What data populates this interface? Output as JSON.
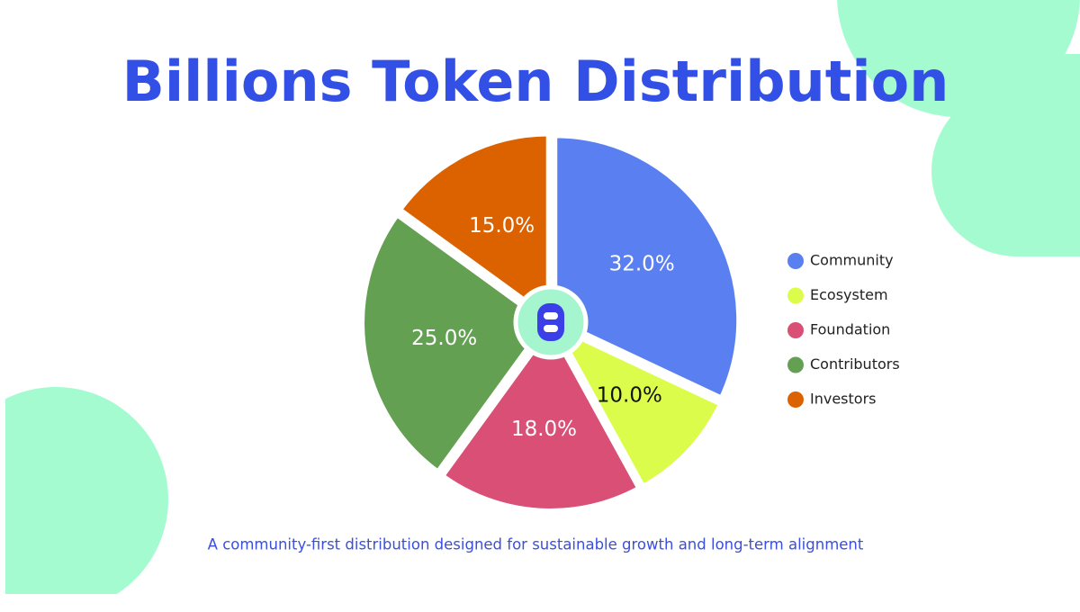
{
  "chart_data": {
    "type": "pie",
    "title": "Billions Token Distribution",
    "subtitle": "A community-first distribution designed for sustainable growth and long-term alignment",
    "categories": [
      "Community",
      "Ecosystem",
      "Foundation",
      "Contributors",
      "Investors"
    ],
    "values": [
      32,
      10,
      18,
      25,
      15
    ],
    "value_labels": [
      "32.0%",
      "10.0%",
      "18.0%",
      "25.0%",
      "15.0%"
    ],
    "colors": [
      "#5a7ff0",
      "#dbfc4a",
      "#d94f75",
      "#64a052",
      "#dc6200"
    ],
    "legend": "right"
  }
}
